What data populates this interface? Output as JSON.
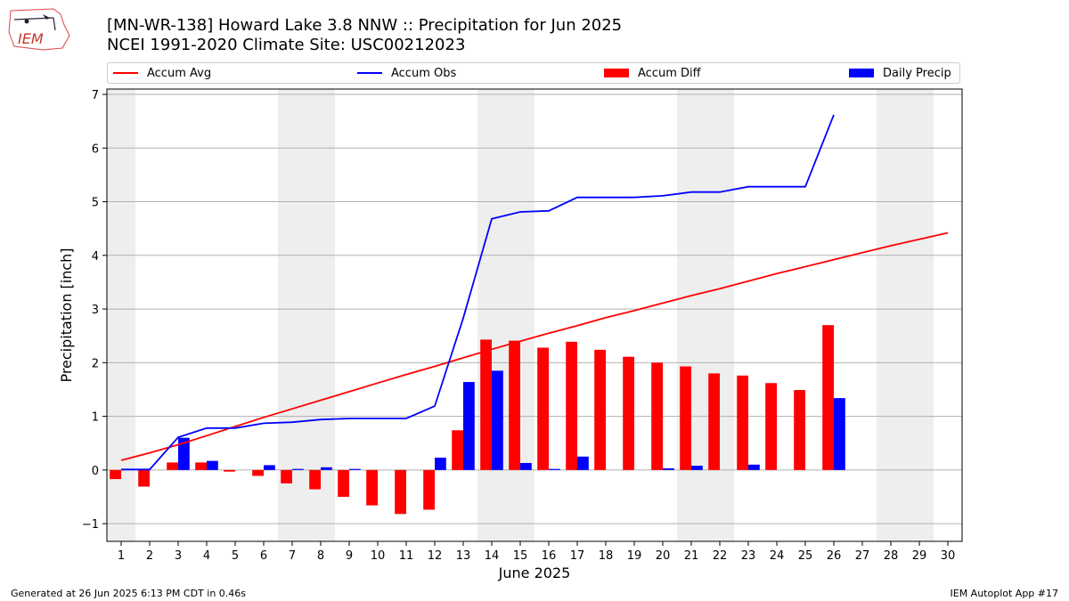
{
  "header": {
    "title_line1": "[MN-WR-138] Howard Lake 3.8 NNW :: Precipitation for Jun 2025",
    "title_line2": "NCEI 1991-2020 Climate Site: USC00212023"
  },
  "logo": {
    "text": "IEM"
  },
  "footer": {
    "generated": "Generated at 26 Jun 2025 6:13 PM CDT in 0.46s",
    "app": "IEM Autoplot App #17"
  },
  "colors": {
    "avg": "#ff0000",
    "obs": "#0000ff",
    "diff": "#ff0000",
    "daily": "#0000ff",
    "weekend_shade": "#eeeeee",
    "grid": "#b0b0b0"
  },
  "chart_data": {
    "type": "bar",
    "xlabel": "June 2025",
    "ylabel": "Precipitation [inch]",
    "xlim": [
      0.5,
      30.5
    ],
    "ylim": [
      -1.33,
      7.1
    ],
    "x_ticks": [
      1,
      2,
      3,
      4,
      5,
      6,
      7,
      8,
      9,
      10,
      11,
      12,
      13,
      14,
      15,
      16,
      17,
      18,
      19,
      20,
      21,
      22,
      23,
      24,
      25,
      26,
      27,
      28,
      29,
      30
    ],
    "y_ticks": [
      -1,
      0,
      1,
      2,
      3,
      4,
      5,
      6,
      7
    ],
    "grid": "horizontal",
    "legend_placement": "top",
    "weekend_days": [
      1,
      7,
      8,
      14,
      15,
      21,
      22,
      28,
      29
    ],
    "legend": [
      "Accum Avg",
      "Accum Obs",
      "Accum Diff",
      "Daily Precip"
    ],
    "series": [
      {
        "name": "Accum Avg",
        "kind": "line",
        "x": [
          1,
          2,
          3,
          4,
          5,
          6,
          7,
          8,
          9,
          10,
          11,
          12,
          13,
          14,
          15,
          16,
          17,
          18,
          19,
          20,
          21,
          22,
          23,
          24,
          25,
          26,
          27,
          28,
          29,
          30
        ],
        "values": [
          0.18,
          0.32,
          0.47,
          0.64,
          0.81,
          0.98,
          1.14,
          1.3,
          1.46,
          1.62,
          1.78,
          1.93,
          2.09,
          2.25,
          2.4,
          2.55,
          2.69,
          2.84,
          2.97,
          3.11,
          3.25,
          3.38,
          3.52,
          3.66,
          3.79,
          3.92,
          4.05,
          4.18,
          4.3,
          4.42
        ]
      },
      {
        "name": "Accum Obs",
        "kind": "line",
        "x": [
          1,
          2,
          3,
          4,
          5,
          6,
          7,
          8,
          9,
          10,
          11,
          12,
          13,
          14,
          15,
          16,
          17,
          18,
          19,
          20,
          21,
          22,
          23,
          24,
          25,
          26
        ],
        "values": [
          0.01,
          0.01,
          0.61,
          0.78,
          0.78,
          0.87,
          0.89,
          0.94,
          0.96,
          0.96,
          0.96,
          1.19,
          2.83,
          4.68,
          4.81,
          4.83,
          5.08,
          5.08,
          5.08,
          5.11,
          5.18,
          5.18,
          5.28,
          5.28,
          5.28,
          6.62
        ]
      },
      {
        "name": "Accum Diff",
        "kind": "bar",
        "x": [
          1,
          2,
          3,
          4,
          5,
          6,
          7,
          8,
          9,
          10,
          11,
          12,
          13,
          14,
          15,
          16,
          17,
          18,
          19,
          20,
          21,
          22,
          23,
          24,
          25,
          26
        ],
        "values": [
          -0.17,
          -0.31,
          0.14,
          0.14,
          -0.03,
          -0.11,
          -0.25,
          -0.36,
          -0.5,
          -0.66,
          -0.82,
          -0.74,
          0.74,
          2.43,
          2.41,
          2.28,
          2.39,
          2.24,
          2.11,
          2.0,
          1.93,
          1.8,
          1.76,
          1.62,
          1.49,
          2.7
        ]
      },
      {
        "name": "Daily Precip",
        "kind": "bar",
        "x": [
          3,
          4,
          6,
          7,
          8,
          9,
          12,
          13,
          14,
          15,
          16,
          17,
          20,
          21,
          23,
          26
        ],
        "values": [
          0.6,
          0.17,
          0.09,
          0.02,
          0.05,
          0.02,
          0.23,
          1.64,
          1.85,
          0.13,
          0.02,
          0.25,
          0.03,
          0.08,
          0.1,
          1.34
        ]
      }
    ]
  }
}
